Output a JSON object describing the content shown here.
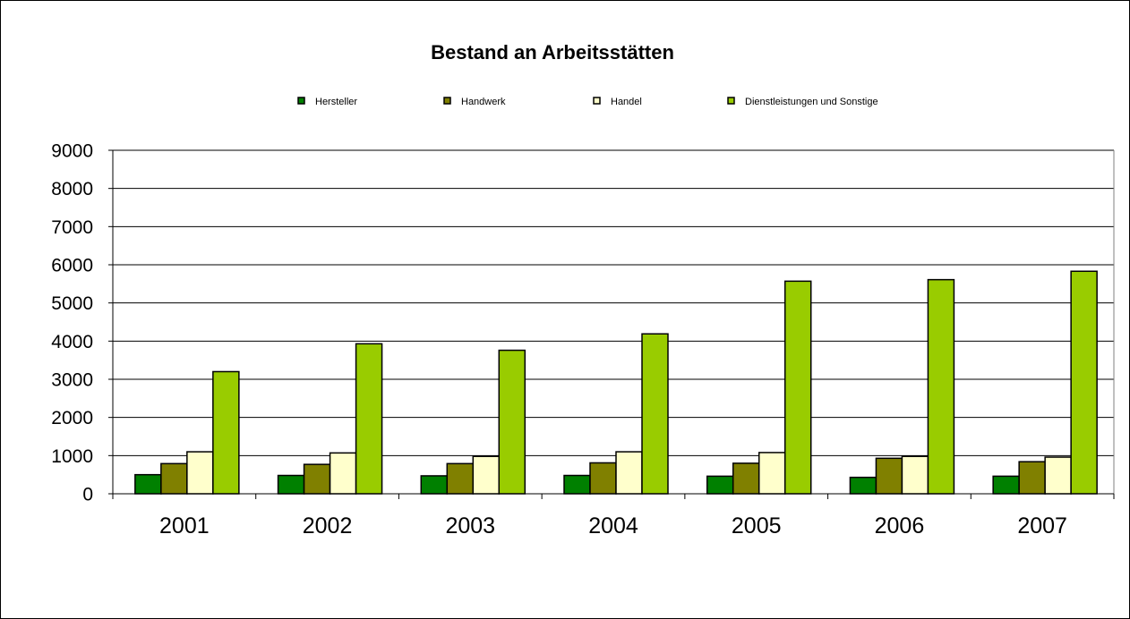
{
  "chart_data": {
    "type": "bar",
    "title": "Bestand an Arbeitsstätten",
    "xlabel": "",
    "ylabel": "",
    "categories": [
      "2001",
      "2002",
      "2003",
      "2004",
      "2005",
      "2006",
      "2007"
    ],
    "series": [
      {
        "name": "Hersteller",
        "color": "#008000",
        "values": [
          500,
          480,
          470,
          480,
          460,
          430,
          460
        ]
      },
      {
        "name": "Handwerk",
        "color": "#808000",
        "values": [
          790,
          770,
          790,
          810,
          800,
          930,
          840
        ]
      },
      {
        "name": "Handel",
        "color": "#FFFFCC",
        "values": [
          1100,
          1070,
          980,
          1100,
          1080,
          980,
          960
        ]
      },
      {
        "name": "Dienstleistungen und Sonstige",
        "color": "#99CC00",
        "values": [
          3200,
          3930,
          3760,
          4190,
          5570,
          5610,
          5830
        ]
      }
    ],
    "ylim": [
      0,
      9000
    ],
    "yticks": [
      "0",
      "1000",
      "2000",
      "3000",
      "4000",
      "5000",
      "6000",
      "7000",
      "8000",
      "9000"
    ],
    "grid": true,
    "legend_position": "top"
  }
}
